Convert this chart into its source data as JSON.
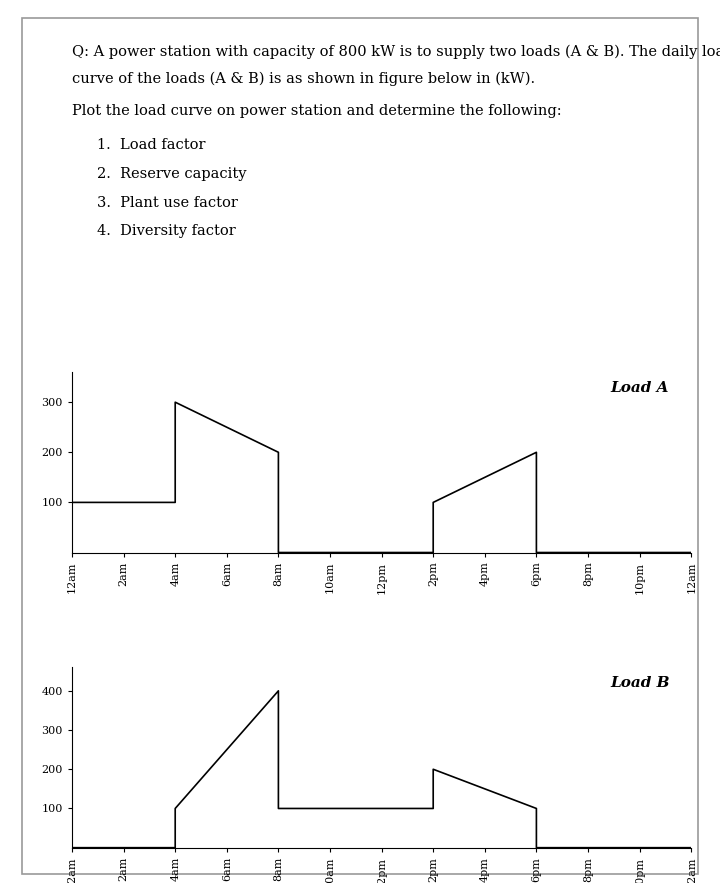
{
  "question_text_line1": "Q: A power station with capacity of 800 kW is to supply two loads (A & B). The daily load",
  "question_text_line2": "curve of the loads (A & B) is as shown in figure below in (kW).",
  "question_text2": "Plot the load curve on power station and determine the following:",
  "items": [
    "1.  Load factor",
    "2.  Reserve capacity",
    "3.  Plant use factor",
    "4.  Diversity factor"
  ],
  "x_ticks": [
    0,
    2,
    4,
    6,
    8,
    10,
    12,
    14,
    16,
    18,
    20,
    22,
    24
  ],
  "x_labels": [
    "12am",
    "2am",
    "4am",
    "6am",
    "8am",
    "10am",
    "12pm",
    "2pm",
    "4pm",
    "6pm",
    "8pm",
    "10pm",
    "12am"
  ],
  "load_a": {
    "x": [
      0,
      4,
      4,
      8,
      8,
      14,
      14,
      18,
      18,
      24
    ],
    "y": [
      100,
      100,
      300,
      200,
      0,
      0,
      100,
      200,
      0,
      0
    ],
    "label": "Load A",
    "yticks": [
      100,
      200,
      300
    ],
    "ylim": [
      0,
      360
    ]
  },
  "load_b": {
    "x": [
      0,
      4,
      4,
      8,
      8,
      14,
      14,
      18,
      18,
      24
    ],
    "y": [
      0,
      0,
      100,
      400,
      100,
      100,
      200,
      100,
      0,
      0
    ],
    "label": "Load B",
    "yticks": [
      100,
      200,
      300,
      400
    ],
    "ylim": [
      0,
      460
    ]
  },
  "bg_color": "#ffffff",
  "line_color": "#000000",
  "text_color": "#000000",
  "border_color": "#999999"
}
